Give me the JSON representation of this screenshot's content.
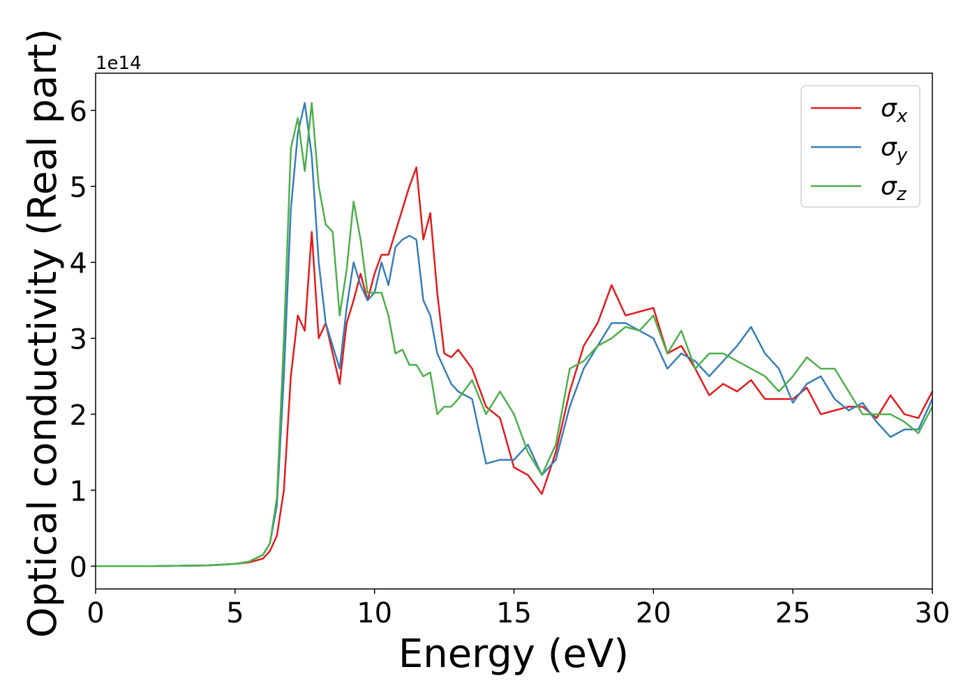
{
  "chart_data": {
    "type": "line",
    "xlabel": "Energy (eV)",
    "ylabel": "Optical conductivity (Real part)",
    "y_offset_label": "1e14",
    "x": [
      0,
      2,
      4,
      5,
      5.5,
      6,
      6.25,
      6.5,
      6.75,
      7,
      7.25,
      7.5,
      7.75,
      8,
      8.25,
      8.5,
      8.75,
      9,
      9.25,
      9.5,
      9.75,
      10,
      10.25,
      10.5,
      10.75,
      11,
      11.25,
      11.5,
      11.75,
      12,
      12.25,
      12.5,
      12.75,
      13,
      13.5,
      14,
      14.5,
      15,
      15.5,
      16,
      16.5,
      17,
      17.5,
      18,
      18.5,
      19,
      19.5,
      20,
      20.5,
      21,
      21.5,
      22,
      22.5,
      23,
      23.5,
      24,
      24.5,
      25,
      25.5,
      26,
      26.5,
      27,
      27.5,
      28,
      28.5,
      29,
      29.5,
      30
    ],
    "series": [
      {
        "name": "σx",
        "color": "#e41a1c",
        "values": [
          0,
          0,
          0.01,
          0.03,
          0.05,
          0.1,
          0.2,
          0.4,
          1.0,
          2.5,
          3.3,
          3.1,
          4.4,
          3.0,
          3.2,
          2.8,
          2.4,
          3.2,
          3.5,
          3.85,
          3.5,
          3.85,
          4.1,
          4.1,
          4.4,
          4.7,
          5.0,
          5.25,
          4.3,
          4.65,
          3.6,
          2.8,
          2.75,
          2.85,
          2.6,
          2.1,
          1.95,
          1.3,
          1.2,
          0.95,
          1.5,
          2.3,
          2.9,
          3.2,
          3.7,
          3.3,
          3.35,
          3.4,
          2.8,
          2.9,
          2.6,
          2.25,
          2.4,
          2.3,
          2.45,
          2.2,
          2.2,
          2.2,
          2.35,
          2.0,
          2.05,
          2.1,
          2.1,
          1.95,
          2.25,
          2.0,
          1.95,
          2.3
        ]
      },
      {
        "name": "σy",
        "color": "#377eb8",
        "values": [
          0,
          0,
          0.01,
          0.03,
          0.06,
          0.15,
          0.3,
          0.8,
          2.5,
          4.7,
          5.7,
          6.1,
          5.4,
          4.0,
          3.2,
          2.9,
          2.6,
          3.4,
          4.0,
          3.7,
          3.5,
          3.6,
          4.0,
          3.7,
          4.2,
          4.3,
          4.35,
          4.3,
          3.5,
          3.3,
          2.8,
          2.6,
          2.4,
          2.3,
          2.2,
          1.35,
          1.4,
          1.4,
          1.6,
          1.2,
          1.4,
          2.1,
          2.6,
          2.9,
          3.2,
          3.2,
          3.1,
          3.0,
          2.6,
          2.8,
          2.7,
          2.5,
          2.7,
          2.9,
          3.15,
          2.8,
          2.6,
          2.15,
          2.4,
          2.5,
          2.2,
          2.05,
          2.15,
          1.9,
          1.7,
          1.8,
          1.8,
          2.2
        ]
      },
      {
        "name": "σz",
        "color": "#4daf4a",
        "values": [
          0,
          0,
          0.01,
          0.03,
          0.06,
          0.15,
          0.3,
          0.9,
          3.0,
          5.5,
          5.9,
          5.2,
          6.1,
          5.0,
          4.5,
          4.4,
          3.3,
          3.9,
          4.8,
          4.3,
          3.6,
          3.6,
          3.6,
          3.3,
          2.8,
          2.85,
          2.65,
          2.65,
          2.5,
          2.55,
          2.0,
          2.1,
          2.1,
          2.2,
          2.45,
          2.0,
          2.3,
          2.0,
          1.5,
          1.2,
          1.6,
          2.6,
          2.7,
          2.9,
          3.0,
          3.15,
          3.1,
          3.3,
          2.8,
          3.1,
          2.6,
          2.8,
          2.8,
          2.7,
          2.6,
          2.5,
          2.3,
          2.5,
          2.75,
          2.6,
          2.6,
          2.3,
          2.0,
          2.0,
          2.0,
          1.9,
          1.75,
          2.1
        ]
      }
    ],
    "xlim": [
      0,
      30
    ],
    "xticks": [
      0,
      5,
      10,
      15,
      20,
      25,
      30
    ],
    "ylim": [
      -0.3,
      6.49
    ],
    "yticks": [
      0,
      1,
      2,
      3,
      4,
      5,
      6
    ],
    "grid": false,
    "legend": "upper right"
  }
}
